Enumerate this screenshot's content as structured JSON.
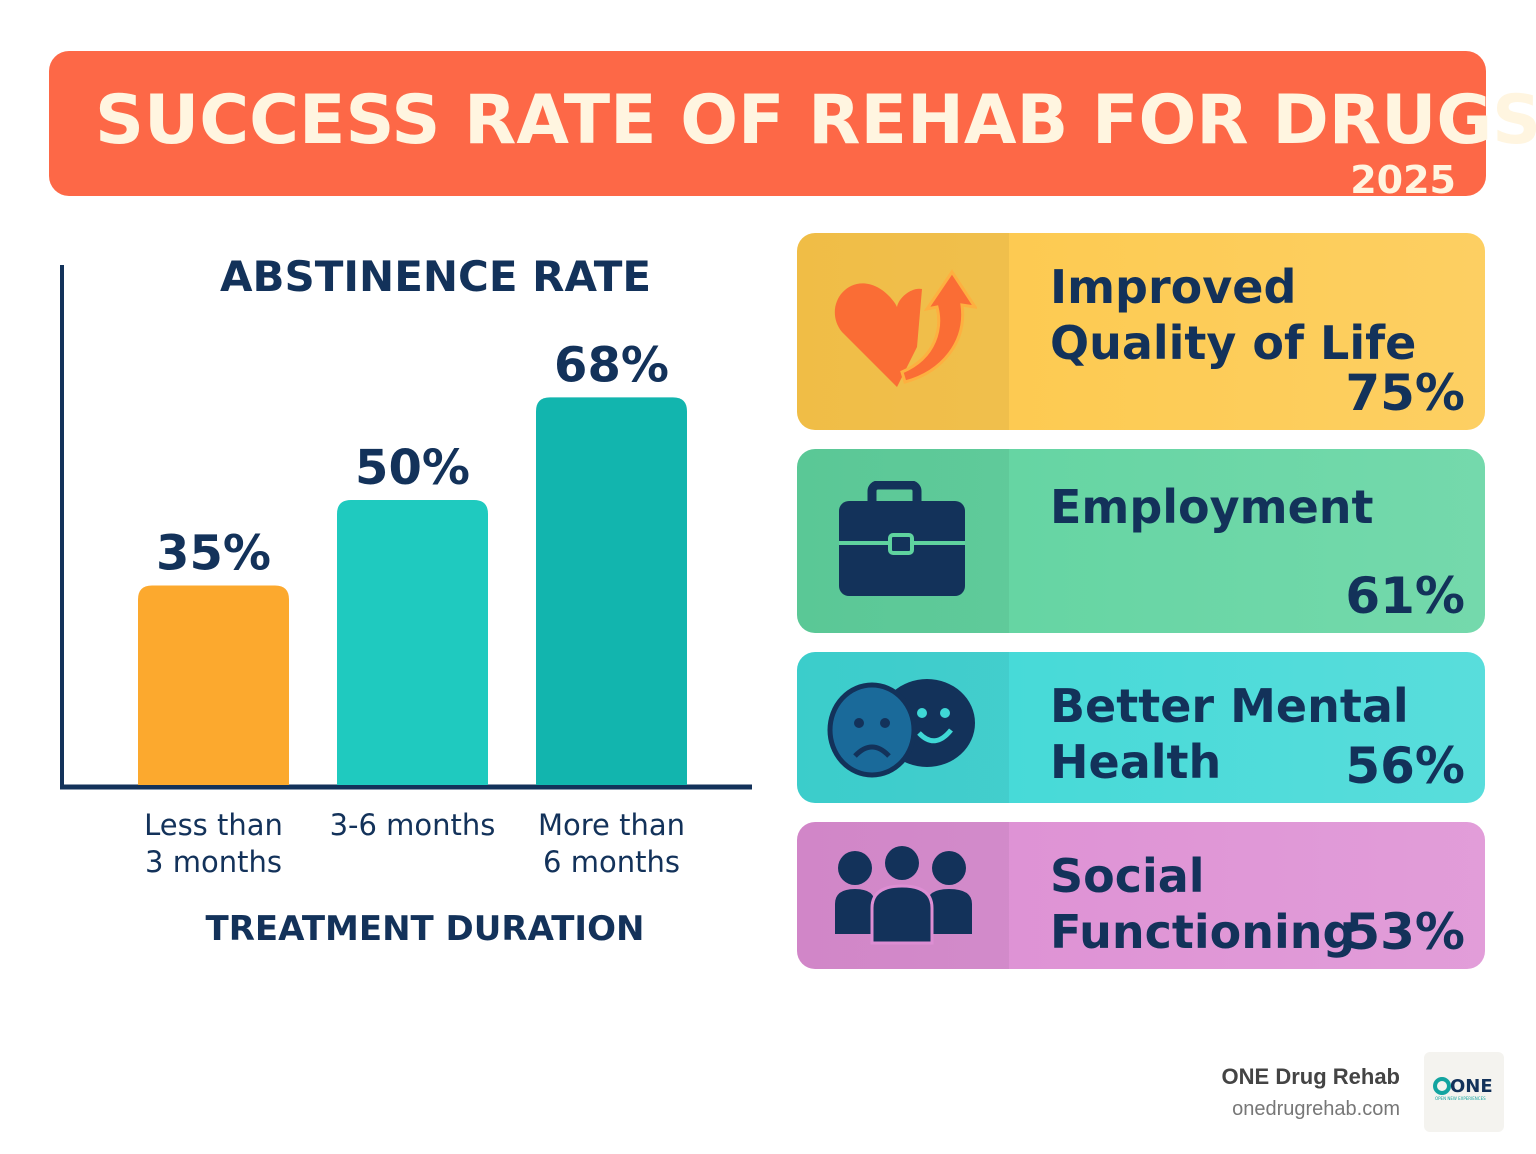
{
  "header": {
    "title": "SUCCESS RATE OF REHAB FOR DRUGS",
    "year": "2025"
  },
  "chart_data": {
    "type": "bar",
    "title": "ABSTINENCE RATE",
    "xlabel": "TREATMENT DURATION",
    "ylabel": "",
    "categories": [
      "Less than\n3 months",
      "3-6 months",
      "More than\n6 months"
    ],
    "values": [
      35,
      50,
      68
    ],
    "data_labels": [
      "35%",
      "50%",
      "68%"
    ],
    "colors": [
      "#fca92e",
      "#1fcabf",
      "#12b5ae"
    ],
    "grid": false
  },
  "outcomes": [
    {
      "label": "Improved\nQuality of Life",
      "value": "75%",
      "icon": "heart-arrow-icon",
      "color": "#fdc84a"
    },
    {
      "label": "Employment",
      "value": "61%",
      "icon": "briefcase-icon",
      "color": "#5fd39f"
    },
    {
      "label": "Better Mental\nHealth",
      "value": "56%",
      "icon": "masks-icon",
      "color": "#3fd8d6"
    },
    {
      "label": "Social\nFunctioning",
      "value": "53%",
      "icon": "people-icon",
      "color": "#dd8ed3"
    }
  ],
  "footer": {
    "brand": "ONE Drug Rehab",
    "url": "onedrugrehab.com",
    "logo_text": "ONE",
    "logo_tagline": "OPEN NEW EXPERIENCES"
  }
}
